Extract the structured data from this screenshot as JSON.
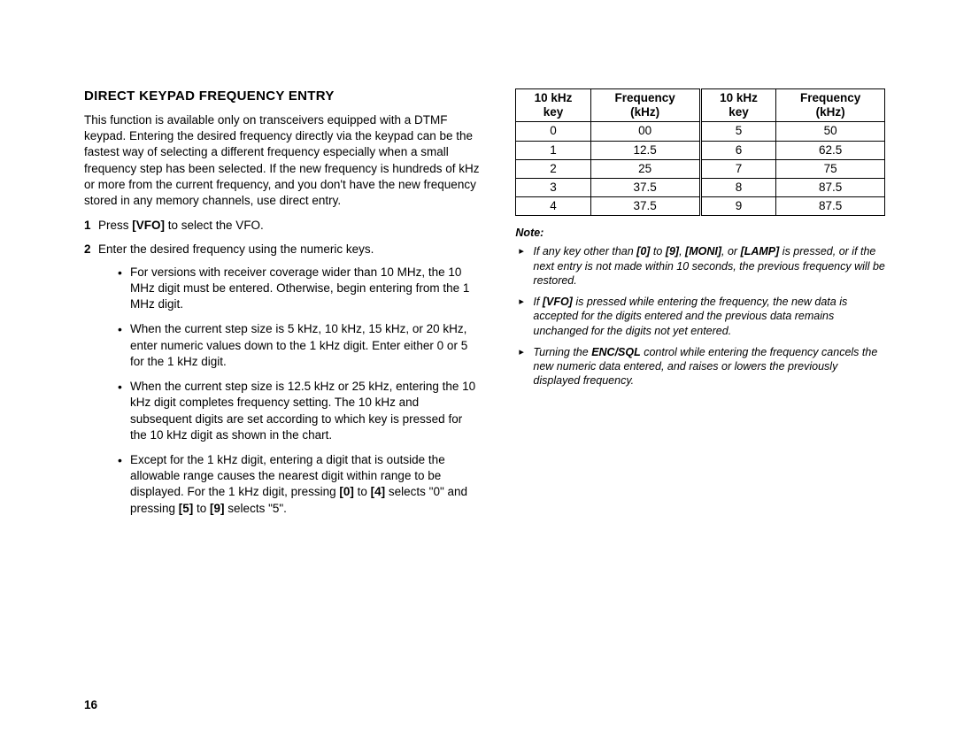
{
  "heading": "DIRECT KEYPAD FREQUENCY ENTRY",
  "intro": "This function is available only on transceivers equipped with a DTMF keypad. Entering the desired frequency directly via the keypad can be the fastest way of selecting a different frequency especially when a small frequency step has been selected. If the new frequency is hundreds of kHz or more from the current frequency, and you don't have the new frequency stored in any memory channels, use direct entry.",
  "steps": {
    "s1_num": "1",
    "s1_a": "Press ",
    "s1_b": "[VFO]",
    "s1_c": " to select the VFO.",
    "s2_num": "2",
    "s2": "Enter the desired frequency using the numeric keys."
  },
  "bullets": {
    "b1": "For versions with receiver coverage wider than 10 MHz, the 10 MHz digit must be entered. Otherwise, begin entering from the 1 MHz digit.",
    "b2": "When the current step size is 5 kHz, 10 kHz, 15 kHz, or 20 kHz, enter numeric values down to the 1 kHz digit. Enter either 0 or 5 for the 1 kHz digit.",
    "b3": "When the current step size is 12.5 kHz or 25 kHz, entering the 10 kHz digit completes frequency setting. The 10 kHz and subsequent digits are set according to which key is pressed for the 10 kHz digit as shown in the chart.",
    "b4_a": "Except for the 1 kHz digit, entering a digit that is outside the allowable range causes the nearest digit within range to be displayed. For the 1 kHz digit, pressing ",
    "b4_b": "[0]",
    "b4_c": " to ",
    "b4_d": "[4]",
    "b4_e": " selects \"0\" and pressing ",
    "b4_f": "[5]",
    "b4_g": " to ",
    "b4_h": "[9]",
    "b4_i": " selects \"5\"."
  },
  "table": {
    "headers": {
      "h1a": "10 kHz",
      "h1b": "key",
      "h2a": "Frequency",
      "h2b": "(kHz)",
      "h3a": "10 kHz",
      "h3b": "key",
      "h4a": "Frequency",
      "h4b": "(kHz)"
    },
    "rows": [
      {
        "c1": "0",
        "c2": "00",
        "c3": "5",
        "c4": "50"
      },
      {
        "c1": "1",
        "c2": "12.5",
        "c3": "6",
        "c4": "62.5"
      },
      {
        "c1": "2",
        "c2": "25",
        "c3": "7",
        "c4": "75"
      },
      {
        "c1": "3",
        "c2": "37.5",
        "c3": "8",
        "c4": "87.5"
      },
      {
        "c1": "4",
        "c2": "37.5",
        "c3": "9",
        "c4": "87.5"
      }
    ]
  },
  "note_label": "Note:",
  "notes": {
    "n1_a": "If any key other than ",
    "n1_b": "[0]",
    "n1_c": " to ",
    "n1_d": "[9]",
    "n1_e": ", ",
    "n1_f": "[MONI]",
    "n1_g": ", or ",
    "n1_h": "[LAMP]",
    "n1_i": " is pressed, or if the next entry is not made within 10 seconds, the previous frequency will be restored.",
    "n2_a": "If ",
    "n2_b": "[VFO]",
    "n2_c": " is pressed while entering the frequency, the new data is accepted for the digits entered and the previous data remains unchanged for the digits not yet entered.",
    "n3_a": "Turning the ",
    "n3_b": "ENC/SQL",
    "n3_c": " control while entering the frequency cancels the new numeric data entered, and raises or lowers the previously displayed frequency."
  },
  "page_number": "16"
}
